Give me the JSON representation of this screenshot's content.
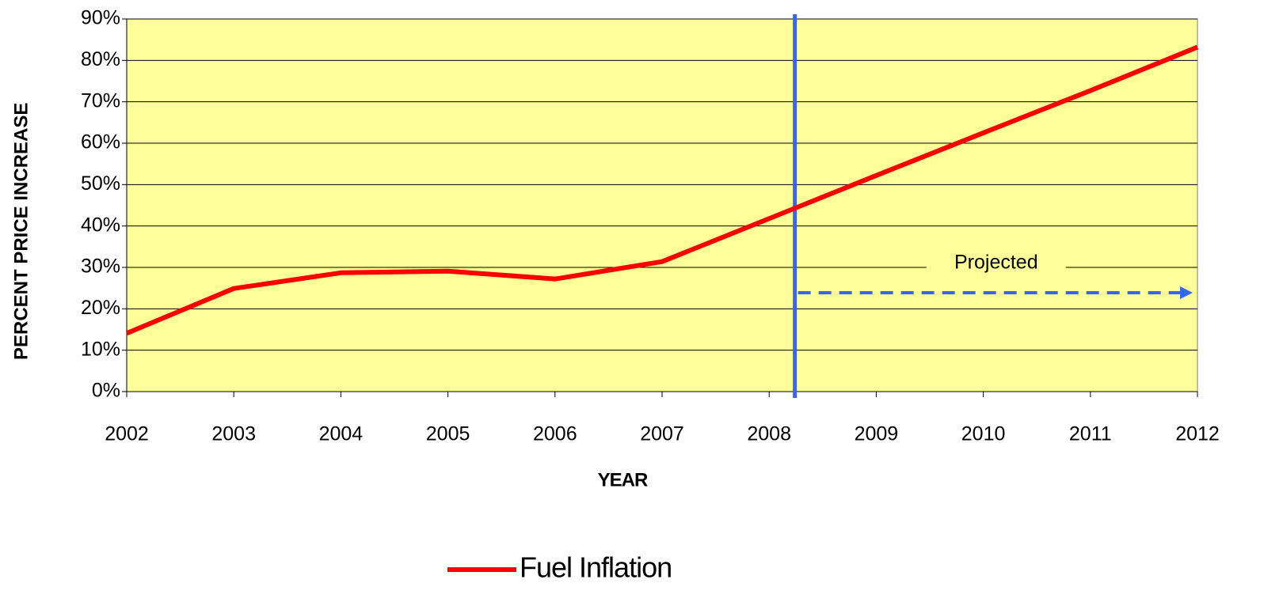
{
  "chart_data": {
    "type": "line",
    "x_label": "YEAR",
    "y_label": "PERCENT PRICE INCREASE",
    "x": [
      2002,
      2003,
      2004,
      2005,
      2006,
      2007,
      2008,
      2009,
      2010,
      2011,
      2012
    ],
    "series": [
      {
        "name": "Fuel Inflation",
        "color": "#ff0000",
        "values": [
          14.1,
          24.9,
          28.7,
          29.1,
          27.2,
          31.4,
          41.8,
          52.2,
          62.5,
          72.7,
          83.2
        ]
      }
    ],
    "xlim": [
      2002,
      2012
    ],
    "xticks": [
      2002,
      2003,
      2004,
      2005,
      2006,
      2007,
      2008,
      2009,
      2010,
      2011,
      2012
    ],
    "ylim": [
      0,
      90
    ],
    "yticks": [
      {
        "value": 0,
        "label": "0%"
      },
      {
        "value": 10,
        "label": "10%"
      },
      {
        "value": 20,
        "label": "20%"
      },
      {
        "value": 30,
        "label": "30%"
      },
      {
        "value": 40,
        "label": "40%"
      },
      {
        "value": 50,
        "label": "50%"
      },
      {
        "value": 60,
        "label": "60%"
      },
      {
        "value": 70,
        "label": "70%"
      },
      {
        "value": 80,
        "label": "80%"
      },
      {
        "value": 90,
        "label": "90%"
      }
    ],
    "grid": true,
    "plot_background": "#ffff99",
    "legend": "bottom",
    "annotations": [
      {
        "text": "Projected",
        "x": 2008.24,
        "color": "#3333a0",
        "line_color": "#3366ff"
      }
    ]
  }
}
